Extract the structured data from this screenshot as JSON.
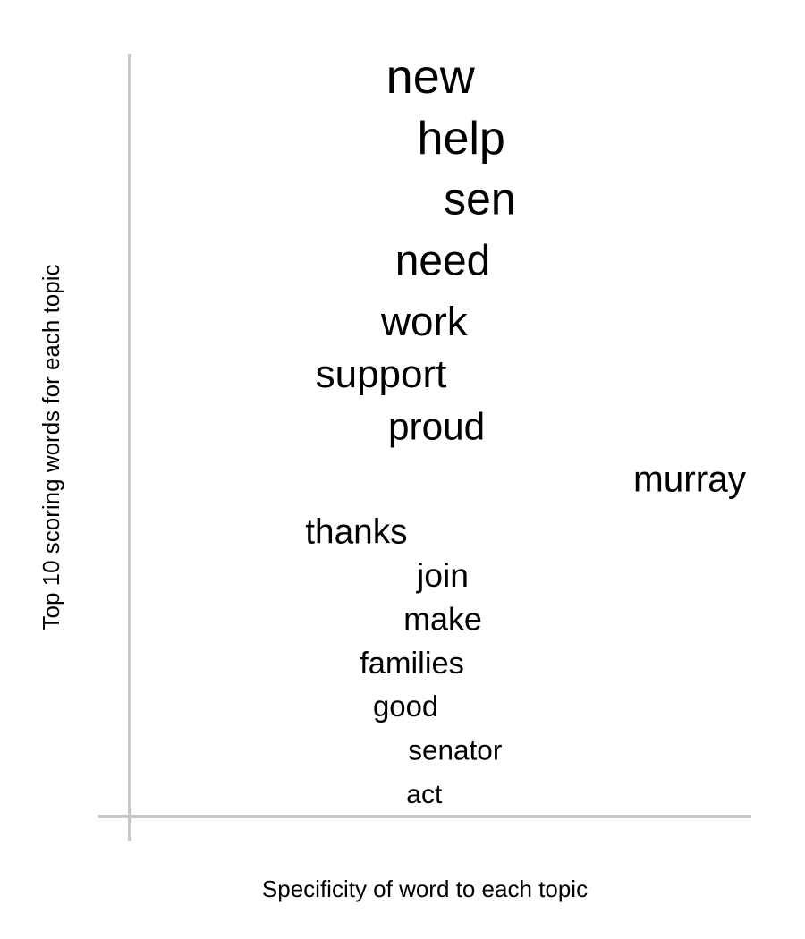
{
  "chart_data": {
    "type": "scatter",
    "title": "",
    "xlabel": "Specificity of word to each topic",
    "ylabel": "Top 10 scoring words for each topic",
    "grid": false,
    "legend": "none",
    "axis_color": "#c8c8c8",
    "text_color": "#000000",
    "points": [
      {
        "word": "new",
        "specificity": 0.48,
        "score": 1.0
      },
      {
        "word": "help",
        "specificity": 0.53,
        "score": 0.93
      },
      {
        "word": "sen",
        "specificity": 0.56,
        "score": 0.86
      },
      {
        "word": "need",
        "specificity": 0.5,
        "score": 0.79
      },
      {
        "word": "work",
        "specificity": 0.47,
        "score": 0.72
      },
      {
        "word": "support",
        "specificity": 0.4,
        "score": 0.66
      },
      {
        "word": "proud",
        "specificity": 0.49,
        "score": 0.6
      },
      {
        "word": "murray",
        "specificity": 0.9,
        "score": 0.54
      },
      {
        "word": "thanks",
        "specificity": 0.36,
        "score": 0.48
      },
      {
        "word": "join",
        "specificity": 0.5,
        "score": 0.43
      },
      {
        "word": "make",
        "specificity": 0.5,
        "score": 0.38
      },
      {
        "word": "families",
        "specificity": 0.45,
        "score": 0.33
      },
      {
        "word": "good",
        "specificity": 0.44,
        "score": 0.28
      },
      {
        "word": "senator",
        "specificity": 0.52,
        "score": 0.23
      },
      {
        "word": "act",
        "specificity": 0.47,
        "score": 0.18
      }
    ]
  }
}
